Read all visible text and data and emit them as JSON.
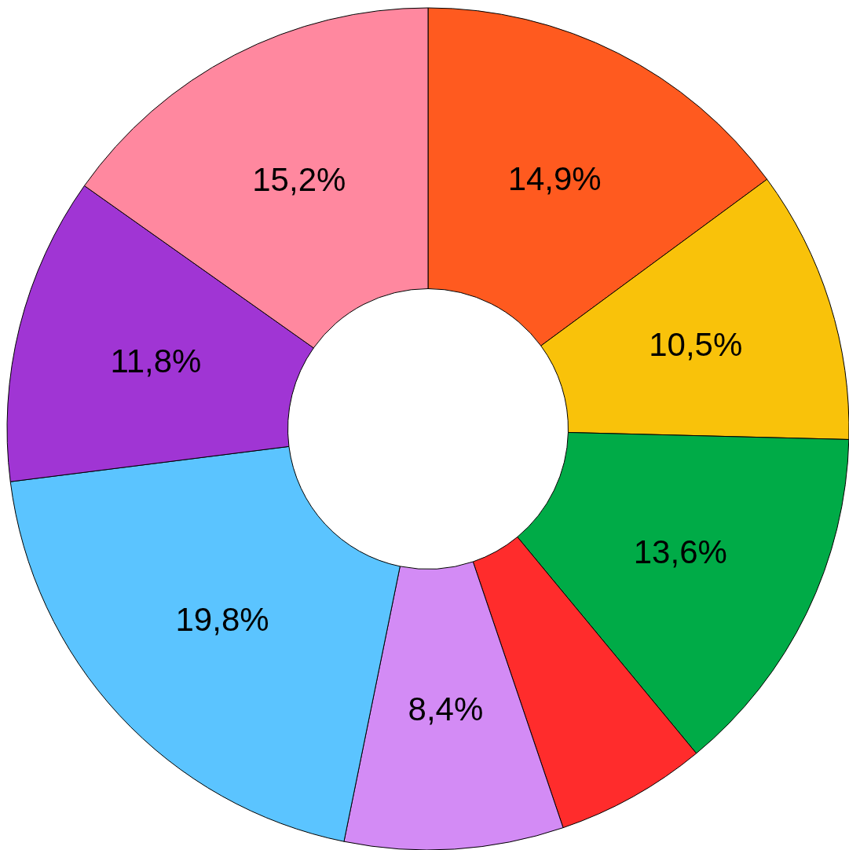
{
  "chart_data": {
    "type": "donut",
    "categories": [
      null,
      null,
      null,
      null,
      null,
      null,
      null,
      null
    ],
    "values": [
      14.9,
      10.5,
      13.6,
      5.8,
      8.4,
      19.8,
      11.8,
      15.2
    ],
    "value_labels": [
      "14,9%",
      "10,5%",
      "13,6%",
      null,
      "8,4%",
      "19,8%",
      "11,8%",
      "15,2%"
    ],
    "colors": [
      "#ff5a1f",
      "#f9c20a",
      "#00ab47",
      "#ff2c2c",
      "#d38bf5",
      "#5bc4ff",
      "#a035d4",
      "#ff889f"
    ],
    "legend": false
  }
}
